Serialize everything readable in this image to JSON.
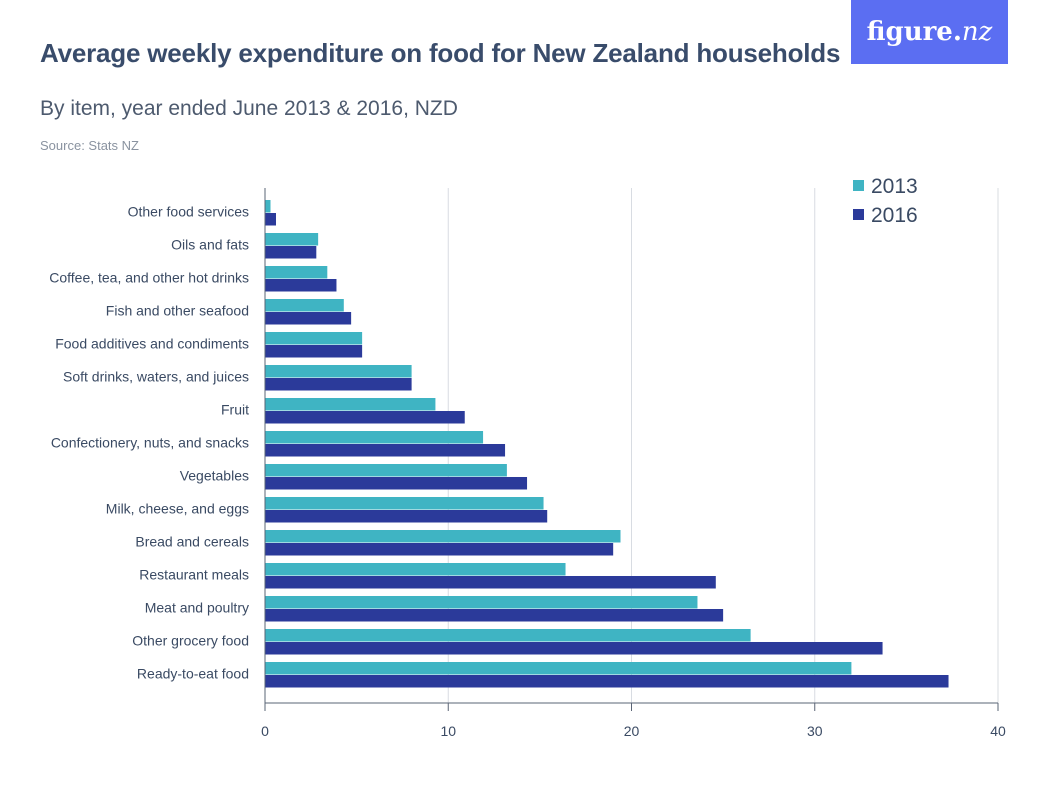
{
  "header": {
    "title": "Average weekly expenditure on food for New Zealand households",
    "subtitle": "By item, year ended June 2013 & 2016, NZD",
    "source": "Source: Stats NZ",
    "logo_main": "figure.",
    "logo_suffix": "nz"
  },
  "chart_data": {
    "type": "bar",
    "orientation": "horizontal",
    "categories": [
      "Other food services",
      "Oils and fats",
      "Coffee, tea, and other hot drinks",
      "Fish and other seafood",
      "Food additives and condiments",
      "Soft drinks, waters, and juices",
      "Fruit",
      "Confectionery, nuts, and snacks",
      "Vegetables",
      "Milk, cheese, and eggs",
      "Bread and cereals",
      "Restaurant meals",
      "Meat and poultry",
      "Other grocery food",
      "Ready-to-eat food"
    ],
    "series": [
      {
        "name": "2013",
        "color": "#3fb4c3",
        "values": [
          0.3,
          2.9,
          3.4,
          4.3,
          5.3,
          8.0,
          9.3,
          11.9,
          13.2,
          15.2,
          19.4,
          16.4,
          23.6,
          26.5,
          32.0
        ]
      },
      {
        "name": "2016",
        "color": "#2b3a9a",
        "values": [
          0.6,
          2.8,
          3.9,
          4.7,
          5.3,
          8.0,
          10.9,
          13.1,
          14.3,
          15.4,
          19.0,
          24.6,
          25.0,
          33.7,
          37.3
        ]
      }
    ],
    "xlim": [
      0,
      40
    ],
    "xticks": [
      "0",
      "10",
      "20",
      "30",
      "40"
    ],
    "xlabel": "",
    "ylabel": "",
    "grid": true,
    "legend_position": "top-right"
  }
}
